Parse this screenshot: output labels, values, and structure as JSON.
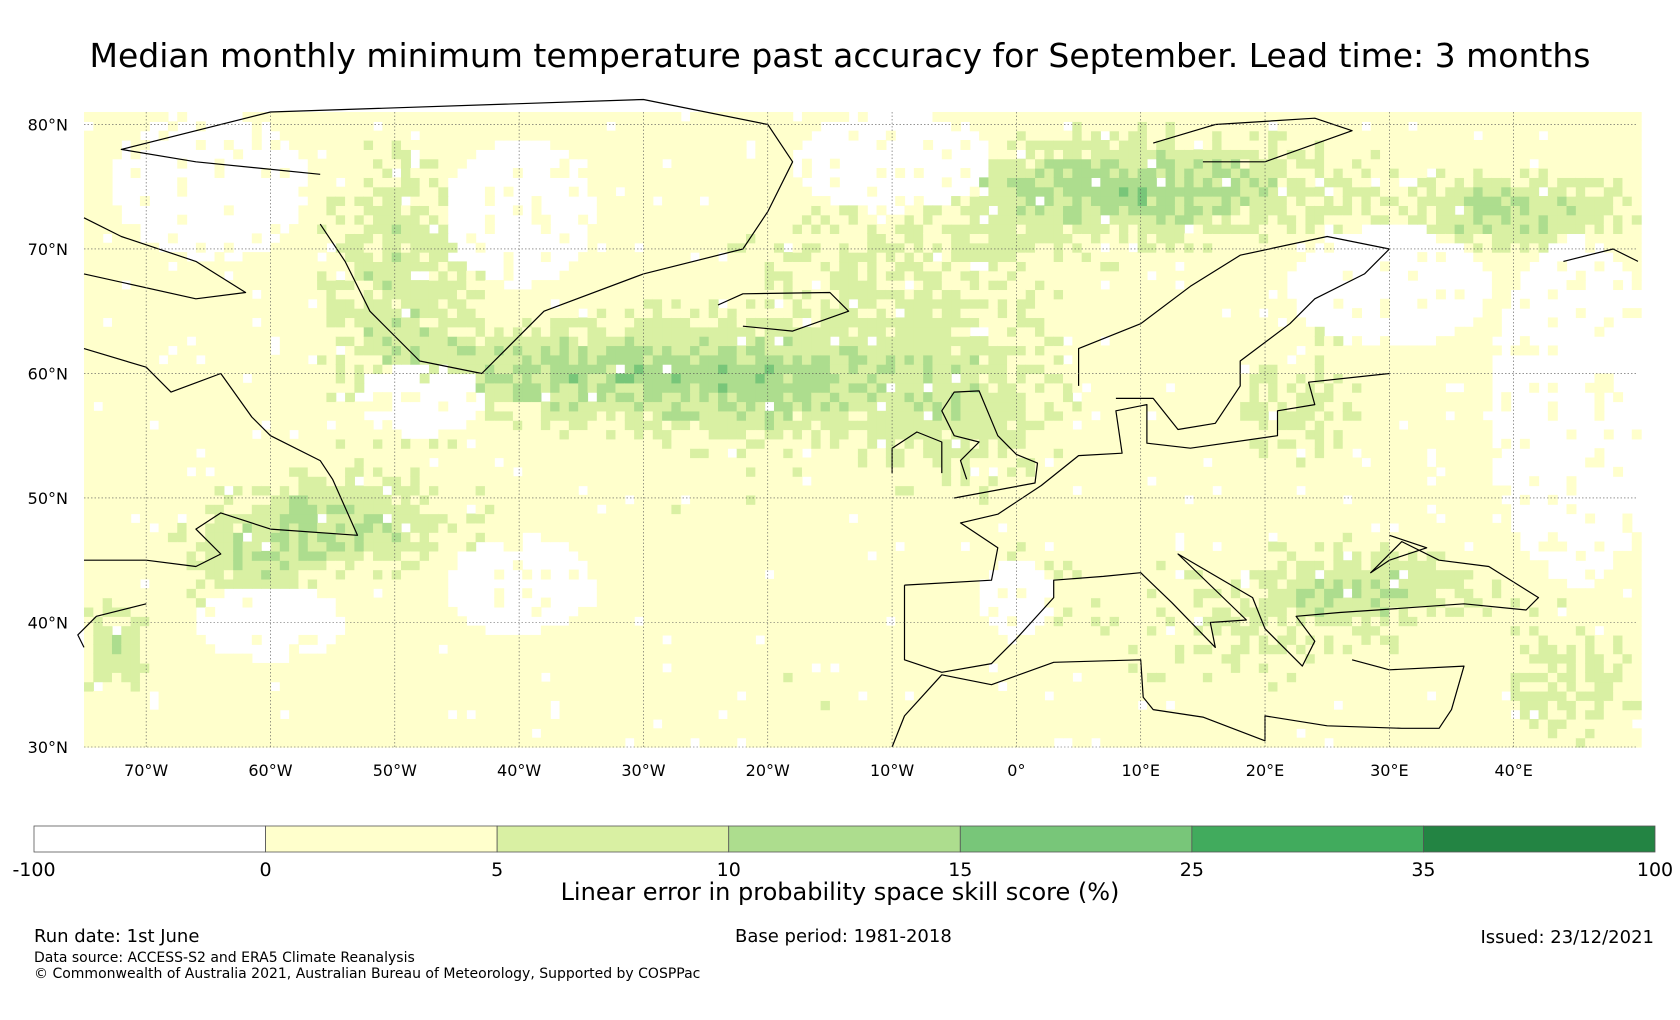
{
  "title": "Median monthly minimum temperature past accuracy for September. Lead time: 3 months",
  "map": {
    "projection": "equirectangular",
    "lon_range": [
      -75,
      50
    ],
    "lat_range": [
      30,
      81
    ],
    "lat_ticks": [
      {
        "value": 80,
        "label": "80°N"
      },
      {
        "value": 70,
        "label": "70°N"
      },
      {
        "value": 60,
        "label": "60°N"
      },
      {
        "value": 50,
        "label": "50°N"
      },
      {
        "value": 40,
        "label": "40°N"
      },
      {
        "value": 30,
        "label": "30°N"
      }
    ],
    "lon_ticks": [
      {
        "value": -70,
        "label": "70°W"
      },
      {
        "value": -60,
        "label": "60°W"
      },
      {
        "value": -50,
        "label": "50°W"
      },
      {
        "value": -40,
        "label": "40°W"
      },
      {
        "value": -30,
        "label": "30°W"
      },
      {
        "value": -20,
        "label": "20°W"
      },
      {
        "value": -10,
        "label": "10°W"
      },
      {
        "value": 0,
        "label": "0°"
      },
      {
        "value": 10,
        "label": "10°E"
      },
      {
        "value": 20,
        "label": "20°E"
      },
      {
        "value": 30,
        "label": "30°E"
      },
      {
        "value": 40,
        "label": "40°E"
      }
    ],
    "grid": true
  },
  "colorbar": {
    "bounds": [
      "-100",
      "0",
      "5",
      "10",
      "15",
      "25",
      "35",
      "100"
    ],
    "colors": [
      "#ffffff",
      "#ffffcc",
      "#d9f0a3",
      "#addd8e",
      "#78c679",
      "#41ab5d",
      "#238443"
    ],
    "label": "Linear error in probability space skill score (%)"
  },
  "footer": {
    "run_date": "Run date: 1st June",
    "base_period": "Base period: 1981-2018",
    "issued": "Issued: 23/12/2021",
    "data_source": "Data source: ACCESS-S2 and ERA5 Climate Reanalysis",
    "copyright": "© Commonwealth of Australia 2021, Australian Bureau of Meteorology, Supported by COSPPac"
  }
}
